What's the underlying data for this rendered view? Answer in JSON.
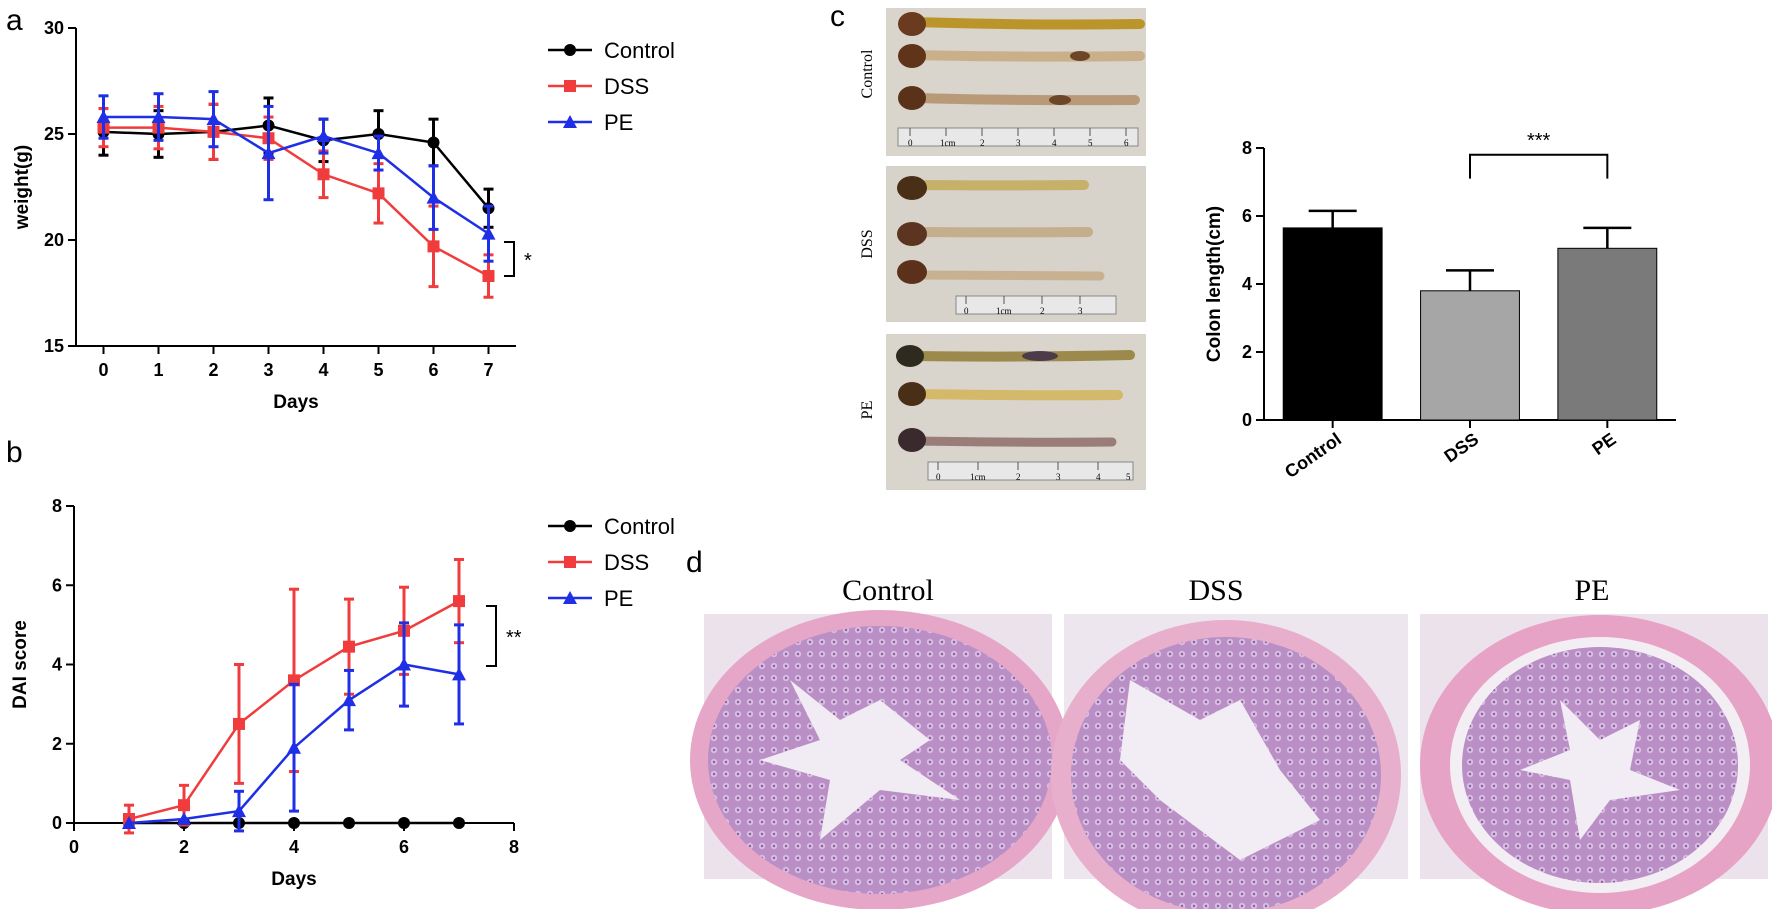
{
  "panels": {
    "a": "a",
    "b": "b",
    "c": "c",
    "d": "d"
  },
  "colors": {
    "control": "#000000",
    "dss": "#f03c3c",
    "pe": "#1f2fe6",
    "bar_control": "#000000",
    "bar_dss": "#a6a6a6",
    "bar_pe": "#7a7a7a"
  },
  "chart_data": [
    {
      "id": "a",
      "type": "line",
      "xlabel": "Days",
      "ylabel": "weight(g)",
      "xlim": [
        -0.5,
        7.5
      ],
      "ylim": [
        15,
        30
      ],
      "xticks": [
        0,
        1,
        2,
        3,
        4,
        5,
        6,
        7
      ],
      "yticks": [
        15,
        20,
        25,
        30
      ],
      "legend": "top-right",
      "series": [
        {
          "name": "Control",
          "marker": "circle",
          "x": [
            0,
            1,
            2,
            3,
            4,
            5,
            6,
            7
          ],
          "values": [
            25.1,
            25.0,
            25.1,
            25.4,
            24.7,
            25.0,
            24.6,
            21.5
          ],
          "errors": [
            1.1,
            1.1,
            1.3,
            1.3,
            1.0,
            1.1,
            1.1,
            0.9
          ]
        },
        {
          "name": "DSS",
          "marker": "square",
          "x": [
            0,
            1,
            2,
            3,
            4,
            5,
            6,
            7
          ],
          "values": [
            25.3,
            25.3,
            25.1,
            24.8,
            23.1,
            22.2,
            19.7,
            18.3
          ],
          "errors": [
            0.9,
            1.0,
            1.3,
            1.0,
            1.1,
            1.4,
            1.9,
            1.0
          ]
        },
        {
          "name": "PE",
          "marker": "triangle",
          "x": [
            0,
            1,
            2,
            3,
            4,
            5,
            6,
            7
          ],
          "values": [
            25.8,
            25.8,
            25.7,
            24.1,
            24.9,
            24.1,
            22.0,
            20.3
          ],
          "errors": [
            1.0,
            1.1,
            1.3,
            2.2,
            0.8,
            0.8,
            1.5,
            1.3
          ]
        }
      ],
      "annotation": "*"
    },
    {
      "id": "b",
      "type": "line",
      "xlabel": "Days",
      "ylabel": "DAI score",
      "xlim": [
        0,
        8
      ],
      "ylim": [
        0,
        8
      ],
      "xticks": [
        0,
        2,
        4,
        6,
        8
      ],
      "yticks": [
        0,
        2,
        4,
        6,
        8
      ],
      "legend": "top-right",
      "series": [
        {
          "name": "Control",
          "marker": "circle",
          "x": [
            1,
            2,
            3,
            4,
            5,
            6,
            7
          ],
          "values": [
            0,
            0,
            0,
            0,
            0,
            0,
            0
          ],
          "errors": [
            0,
            0,
            0,
            0,
            0,
            0,
            0
          ]
        },
        {
          "name": "DSS",
          "marker": "square",
          "x": [
            1,
            2,
            3,
            4,
            5,
            6,
            7
          ],
          "values": [
            0.1,
            0.45,
            2.5,
            3.6,
            4.45,
            4.85,
            5.6
          ],
          "errors": [
            0.35,
            0.5,
            1.5,
            2.3,
            1.2,
            1.1,
            1.05
          ]
        },
        {
          "name": "PE",
          "marker": "triangle",
          "x": [
            1,
            2,
            3,
            4,
            5,
            6,
            7
          ],
          "values": [
            0.0,
            0.1,
            0.3,
            1.9,
            3.1,
            4.0,
            3.75
          ],
          "errors": [
            0.0,
            0.0,
            0.5,
            1.6,
            0.75,
            1.05,
            1.25
          ]
        }
      ],
      "annotation": "**"
    },
    {
      "id": "c-bar",
      "type": "bar",
      "ylabel": "Colon length(cm)",
      "categories": [
        "Control",
        "DSS",
        "PE"
      ],
      "values": [
        5.65,
        3.8,
        5.05
      ],
      "errors": [
        0.5,
        0.6,
        0.6
      ],
      "ylim": [
        0,
        8
      ],
      "yticks": [
        0,
        2,
        4,
        6,
        8
      ],
      "annotation": "***"
    }
  ],
  "photo_labels": [
    "Control",
    "DSS",
    "PE"
  ],
  "ruler_labels": {
    "control": [
      "0",
      "1cm",
      "2",
      "3",
      "4",
      "5",
      "6"
    ],
    "dss": [
      "0",
      "1cm",
      "2",
      "3"
    ],
    "pe": [
      "0",
      "1cm",
      "2",
      "3",
      "4",
      "5"
    ]
  },
  "histology_titles": [
    "Control",
    "DSS",
    "PE"
  ]
}
